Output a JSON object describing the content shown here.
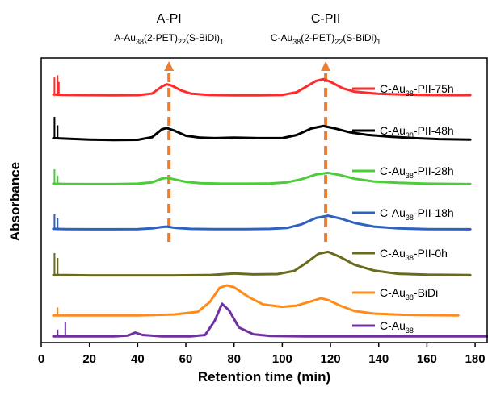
{
  "chart_data": {
    "type": "line",
    "xlabel": "Retention time (min)",
    "ylabel": "Absorbance",
    "xlim": [
      0,
      185
    ],
    "xticks": [
      0,
      20,
      40,
      60,
      80,
      100,
      120,
      140,
      160,
      180
    ],
    "annotations": [
      {
        "title": "A-PI",
        "formula": "A-Au38(2-PET)22(S-BiDi)1",
        "x": 53,
        "color": "#ed7d31",
        "style": "dashed-arrow"
      },
      {
        "title": "C-PII",
        "formula": "C-Au38(2-PET)22(S-BiDi)1",
        "x": 118,
        "color": "#ed7d31",
        "style": "dashed-arrow"
      }
    ],
    "series": [
      {
        "name": "C-Au38-PII-75h",
        "color": "#ff2a2a",
        "points": [
          [
            5,
            0.1
          ],
          [
            10,
            0.08
          ],
          [
            20,
            0.07
          ],
          [
            30,
            0.06
          ],
          [
            40,
            0.07
          ],
          [
            46,
            0.14
          ],
          [
            50,
            0.45
          ],
          [
            52,
            0.55
          ],
          [
            54,
            0.5
          ],
          [
            58,
            0.28
          ],
          [
            62,
            0.14
          ],
          [
            70,
            0.08
          ],
          [
            80,
            0.06
          ],
          [
            90,
            0.06
          ],
          [
            100,
            0.08
          ],
          [
            106,
            0.2
          ],
          [
            110,
            0.45
          ],
          [
            114,
            0.7
          ],
          [
            117,
            0.78
          ],
          [
            120,
            0.66
          ],
          [
            125,
            0.38
          ],
          [
            130,
            0.22
          ],
          [
            140,
            0.13
          ],
          [
            150,
            0.1
          ],
          [
            160,
            0.08
          ],
          [
            170,
            0.07
          ],
          [
            178,
            0.07
          ]
        ],
        "spikes": [
          [
            5.5,
            0.85
          ],
          [
            6.8,
            0.95
          ],
          [
            7.3,
            0.65
          ]
        ]
      },
      {
        "name": "C-Au38-PII-48h",
        "color": "#000000",
        "points": [
          [
            5,
            0.12
          ],
          [
            10,
            0.1
          ],
          [
            20,
            0.06
          ],
          [
            30,
            0.04
          ],
          [
            40,
            0.05
          ],
          [
            46,
            0.16
          ],
          [
            50,
            0.48
          ],
          [
            52,
            0.54
          ],
          [
            55,
            0.44
          ],
          [
            60,
            0.22
          ],
          [
            66,
            0.14
          ],
          [
            72,
            0.12
          ],
          [
            80,
            0.14
          ],
          [
            90,
            0.12
          ],
          [
            100,
            0.12
          ],
          [
            106,
            0.25
          ],
          [
            112,
            0.52
          ],
          [
            117,
            0.62
          ],
          [
            122,
            0.52
          ],
          [
            128,
            0.36
          ],
          [
            135,
            0.26
          ],
          [
            145,
            0.18
          ],
          [
            155,
            0.12
          ],
          [
            165,
            0.08
          ],
          [
            178,
            0.06
          ]
        ],
        "spikes": [
          [
            5.5,
            1.0
          ],
          [
            6.8,
            0.65
          ]
        ]
      },
      {
        "name": "C-Au38-PII-28h",
        "color": "#4dcc3a",
        "points": [
          [
            5,
            0.04
          ],
          [
            10,
            0.03
          ],
          [
            20,
            0.02
          ],
          [
            30,
            0.02
          ],
          [
            40,
            0.04
          ],
          [
            46,
            0.1
          ],
          [
            50,
            0.26
          ],
          [
            52,
            0.3
          ],
          [
            55,
            0.24
          ],
          [
            60,
            0.12
          ],
          [
            66,
            0.06
          ],
          [
            75,
            0.04
          ],
          [
            85,
            0.04
          ],
          [
            95,
            0.05
          ],
          [
            102,
            0.1
          ],
          [
            108,
            0.24
          ],
          [
            114,
            0.45
          ],
          [
            119,
            0.52
          ],
          [
            124,
            0.42
          ],
          [
            130,
            0.26
          ],
          [
            138,
            0.14
          ],
          [
            148,
            0.08
          ],
          [
            160,
            0.04
          ],
          [
            178,
            0.02
          ]
        ],
        "spikes": [
          [
            5.5,
            0.68
          ],
          [
            6.8,
            0.4
          ]
        ]
      },
      {
        "name": "C-Au38-PII-18h",
        "color": "#3060c0",
        "points": [
          [
            5,
            0.04
          ],
          [
            10,
            0.03
          ],
          [
            20,
            0.02
          ],
          [
            30,
            0.02
          ],
          [
            40,
            0.03
          ],
          [
            46,
            0.06
          ],
          [
            50,
            0.12
          ],
          [
            52,
            0.14
          ],
          [
            56,
            0.08
          ],
          [
            62,
            0.04
          ],
          [
            72,
            0.03
          ],
          [
            85,
            0.03
          ],
          [
            95,
            0.04
          ],
          [
            102,
            0.08
          ],
          [
            108,
            0.24
          ],
          [
            114,
            0.52
          ],
          [
            119,
            0.62
          ],
          [
            124,
            0.5
          ],
          [
            130,
            0.3
          ],
          [
            138,
            0.14
          ],
          [
            148,
            0.06
          ],
          [
            160,
            0.03
          ],
          [
            178,
            0.02
          ]
        ],
        "spikes": [
          [
            5.5,
            0.7
          ],
          [
            6.8,
            0.5
          ]
        ]
      },
      {
        "name": "C-Au38-PII-0h",
        "color": "#6b6b1e",
        "points": [
          [
            5,
            0.02
          ],
          [
            10,
            0.02
          ],
          [
            20,
            0.01
          ],
          [
            40,
            0.01
          ],
          [
            55,
            0.01
          ],
          [
            70,
            0.02
          ],
          [
            80,
            0.07
          ],
          [
            88,
            0.04
          ],
          [
            98,
            0.05
          ],
          [
            105,
            0.15
          ],
          [
            110,
            0.4
          ],
          [
            115,
            0.68
          ],
          [
            119,
            0.74
          ],
          [
            124,
            0.58
          ],
          [
            130,
            0.34
          ],
          [
            138,
            0.16
          ],
          [
            148,
            0.06
          ],
          [
            160,
            0.03
          ],
          [
            178,
            0.02
          ]
        ],
        "spikes": [
          [
            5.5,
            0.7
          ],
          [
            6.8,
            0.55
          ]
        ]
      },
      {
        "name": "C-Au38-BiDi",
        "color": "#ff8c1a",
        "points": [
          [
            5,
            0.02
          ],
          [
            10,
            0.02
          ],
          [
            20,
            0.02
          ],
          [
            40,
            0.02
          ],
          [
            55,
            0.05
          ],
          [
            65,
            0.14
          ],
          [
            70,
            0.46
          ],
          [
            74,
            0.92
          ],
          [
            77,
            1.0
          ],
          [
            80,
            0.94
          ],
          [
            86,
            0.62
          ],
          [
            92,
            0.38
          ],
          [
            100,
            0.3
          ],
          [
            106,
            0.34
          ],
          [
            112,
            0.48
          ],
          [
            116,
            0.58
          ],
          [
            119,
            0.52
          ],
          [
            124,
            0.34
          ],
          [
            130,
            0.16
          ],
          [
            138,
            0.08
          ],
          [
            150,
            0.04
          ],
          [
            160,
            0.03
          ],
          [
            173,
            0.02
          ]
        ],
        "spikes": [
          [
            6.8,
            0.28
          ]
        ]
      },
      {
        "name": "C-Au38",
        "color": "#7030a0",
        "points": [
          [
            5,
            0.02
          ],
          [
            10,
            0.02
          ],
          [
            20,
            0.02
          ],
          [
            30,
            0.02
          ],
          [
            36,
            0.04
          ],
          [
            39,
            0.13
          ],
          [
            42,
            0.06
          ],
          [
            50,
            0.02
          ],
          [
            62,
            0.02
          ],
          [
            68,
            0.06
          ],
          [
            72,
            0.48
          ],
          [
            75,
            0.98
          ],
          [
            78,
            0.78
          ],
          [
            82,
            0.28
          ],
          [
            88,
            0.08
          ],
          [
            95,
            0.03
          ],
          [
            110,
            0.02
          ],
          [
            130,
            0.02
          ],
          [
            160,
            0.02
          ],
          [
            185,
            0.02
          ]
        ],
        "spikes": [
          [
            6.8,
            0.22
          ],
          [
            10,
            0.45
          ]
        ]
      }
    ]
  }
}
